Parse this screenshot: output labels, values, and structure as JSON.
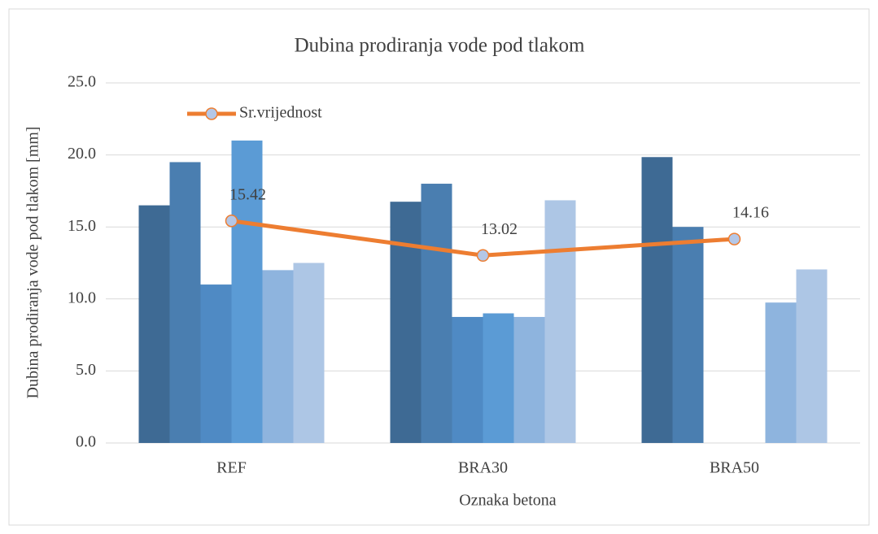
{
  "chart_data": {
    "type": "bar",
    "title": "Dubina prodiranja vode pod tlakom",
    "x_label": "Oznaka betona",
    "y_label": "Dubina prodiranja vode pod tlakom [mm]",
    "categories": [
      "REF",
      "BRA30",
      "BRA50"
    ],
    "series": [
      {
        "color": "#3e6a94",
        "values": [
          16.5,
          16.75,
          19.85
        ]
      },
      {
        "color": "#4a7eb0",
        "values": [
          19.5,
          18.0,
          15.0
        ]
      },
      {
        "color": "#4f8ac4",
        "values": [
          11.0,
          8.75,
          null
        ]
      },
      {
        "color": "#5b9bd5",
        "values": [
          21.0,
          9.0,
          null
        ]
      },
      {
        "color": "#8eb4de",
        "values": [
          12.0,
          8.75,
          9.75
        ]
      },
      {
        "color": "#adc6e5",
        "values": [
          12.5,
          16.85,
          12.05
        ]
      },
      {
        "name": "Sr.vrijednost",
        "type": "line",
        "color": "#ed7d31",
        "marker_color": "#b4c7e7",
        "values": [
          15.42,
          13.02,
          14.16
        ]
      }
    ],
    "ylim": [
      0,
      25
    ],
    "yticks": [
      {
        "value": 0,
        "label": "0.0"
      },
      {
        "value": 5,
        "label": "5.0"
      },
      {
        "value": 10,
        "label": "10.0"
      },
      {
        "value": 15,
        "label": "15.0"
      },
      {
        "value": 20,
        "label": "20.0"
      },
      {
        "value": 25,
        "label": "25.0"
      }
    ],
    "grid": true,
    "legend": "top-left"
  }
}
